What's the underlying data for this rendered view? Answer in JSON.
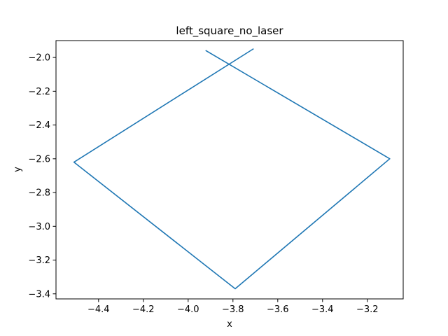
{
  "chart_data": {
    "type": "line",
    "title": "left_square_no_laser",
    "xlabel": "x",
    "ylabel": "y",
    "xlim": [
      -4.59,
      -3.04
    ],
    "ylim": [
      -3.43,
      -1.9
    ],
    "grid": false,
    "x_ticks": [
      -4.4,
      -4.2,
      -4.0,
      -3.8,
      -3.6,
      -3.4,
      -3.2
    ],
    "x_tick_labels": [
      "−4.4",
      "−4.2",
      "−4.0",
      "−3.8",
      "−3.6",
      "−3.4",
      "−3.2"
    ],
    "y_ticks": [
      -2.0,
      -2.2,
      -2.4,
      -2.6,
      -2.8,
      -3.0,
      -3.2,
      -3.4
    ],
    "y_tick_labels": [
      "−2.0",
      "−2.2",
      "−2.4",
      "−2.6",
      "−2.8",
      "−3.0",
      "−3.2",
      "−3.4"
    ],
    "series": [
      {
        "color": "#1f77b4",
        "x": [
          -3.92,
          -3.1,
          -3.79,
          -4.51,
          -3.71
        ],
        "y": [
          -1.96,
          -2.6,
          -3.37,
          -2.62,
          -1.95
        ]
      }
    ]
  }
}
